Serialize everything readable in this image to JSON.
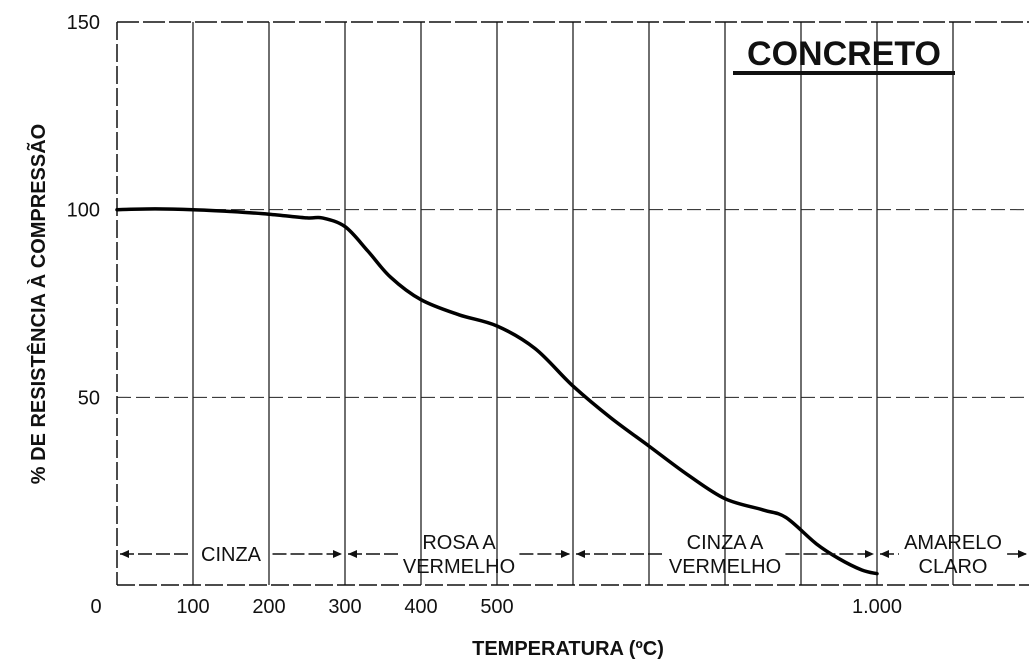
{
  "chart_data": {
    "type": "line",
    "title": "CONCRETO",
    "xlabel": "TEMPERATURA (ºC)",
    "ylabel": "% DE RESISTÊNCIA À COMPRESSÃO",
    "xlim": [
      0,
      1200
    ],
    "ylim": [
      0,
      150
    ],
    "grid": true,
    "x_tick_labels": [
      {
        "value": 0,
        "label": "0"
      },
      {
        "value": 100,
        "label": "100"
      },
      {
        "value": 200,
        "label": "200"
      },
      {
        "value": 300,
        "label": "300"
      },
      {
        "value": 400,
        "label": "400"
      },
      {
        "value": 500,
        "label": "500"
      },
      {
        "value": 1000,
        "label": "1.000"
      }
    ],
    "y_tick_labels": [
      {
        "value": 50,
        "label": "50"
      },
      {
        "value": 100,
        "label": "100"
      },
      {
        "value": 150,
        "label": "150"
      }
    ],
    "series": [
      {
        "x": [
          0,
          50,
          100,
          150,
          200,
          250,
          270,
          300,
          330,
          360,
          400,
          450,
          500,
          550,
          600,
          650,
          700,
          750,
          800,
          850,
          880,
          920,
          950,
          980,
          1000
        ],
        "y": [
          100,
          100.2,
          100,
          99.5,
          98.8,
          97.8,
          97.8,
          95.5,
          89,
          82,
          76,
          72,
          69,
          63,
          53,
          44.5,
          37,
          29.5,
          23,
          20,
          18,
          11,
          7,
          4,
          3
        ]
      }
    ],
    "bands": [
      {
        "label": "CINZA",
        "from": 0,
        "to": 300
      },
      {
        "label": "ROSA A VERMELHO",
        "from": 300,
        "to": 600
      },
      {
        "label": "CINZA A VERMELHO",
        "from": 600,
        "to": 1000
      },
      {
        "label": "AMARELO CLARO",
        "from": 1000,
        "to": 1200
      }
    ]
  }
}
